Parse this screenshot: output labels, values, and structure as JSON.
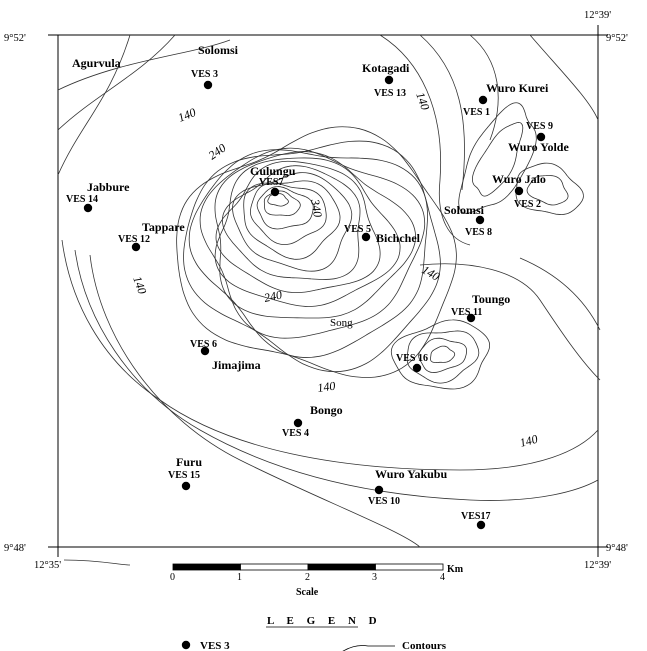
{
  "coordinates": {
    "top_left_lat": "9°52'",
    "top_right_lat": "9°52'",
    "bottom_left_lat": "9°48'",
    "bottom_right_lat": "9°48'",
    "top_right_lon": "12°39'",
    "bottom_left_lon": "12°35'",
    "bottom_right_lon": "12°39'"
  },
  "towns": [
    "Agurvula",
    "Solomsi",
    "Kotagadi",
    "Wuro Kurei",
    "Wuro Yolde",
    "Wuro Jalo",
    "Gulungu",
    "Jabbure",
    "Tappare",
    "Solomsi",
    "Bichchel",
    "Toungo",
    "Song",
    "Jimajima",
    "Bongo",
    "Furu",
    "Wuro Yakubu"
  ],
  "stations": [
    "VES 3",
    "VES 13",
    "VES 1",
    "VES 9",
    "VES 2",
    "VES 8",
    "VES7",
    "VES 14",
    "VES 12",
    "VES 5",
    "VES 11",
    "VES 6",
    "VES 16",
    "VES 4",
    "VES 15",
    "VES 10",
    "VES17"
  ],
  "contour_labels": [
    "140",
    "140",
    "240",
    "340",
    "140",
    "140",
    "240",
    "140",
    "140"
  ],
  "scale": {
    "ticks": [
      "0",
      "1",
      "2",
      "3",
      "4"
    ],
    "unit": "Km",
    "title": "Scale"
  },
  "legend": {
    "title": "L E G E N D",
    "symbol_label": "VES 3",
    "line_label": "Contours"
  }
}
